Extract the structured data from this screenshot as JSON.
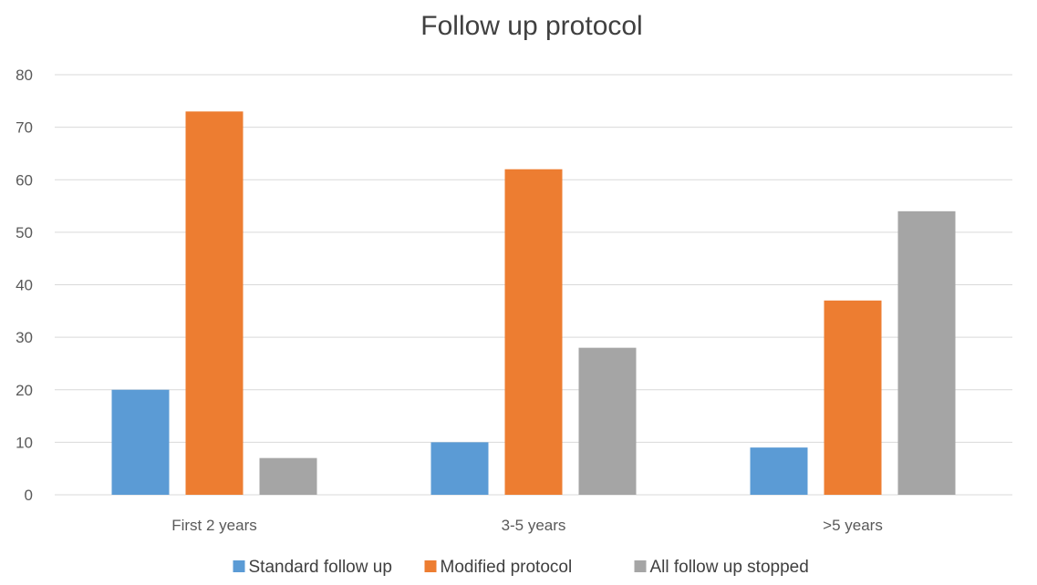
{
  "chart_data": {
    "type": "bar",
    "title": "Follow up protocol",
    "xlabel": "",
    "ylabel": "",
    "categories": [
      "First 2 years",
      "3-5 years",
      ">5 years"
    ],
    "series": [
      {
        "name": "Standard follow up",
        "values": [
          20,
          10,
          9
        ],
        "color": "#5B9BD5"
      },
      {
        "name": "Modified protocol",
        "values": [
          73,
          62,
          37
        ],
        "color": "#ED7D31"
      },
      {
        "name": "All follow up stopped",
        "values": [
          7,
          28,
          54
        ],
        "color": "#A5A5A5"
      }
    ],
    "ylim": [
      0,
      80
    ],
    "yticks": [
      0,
      10,
      20,
      30,
      40,
      50,
      60,
      70,
      80
    ],
    "grid": true,
    "legend": "bottom"
  }
}
